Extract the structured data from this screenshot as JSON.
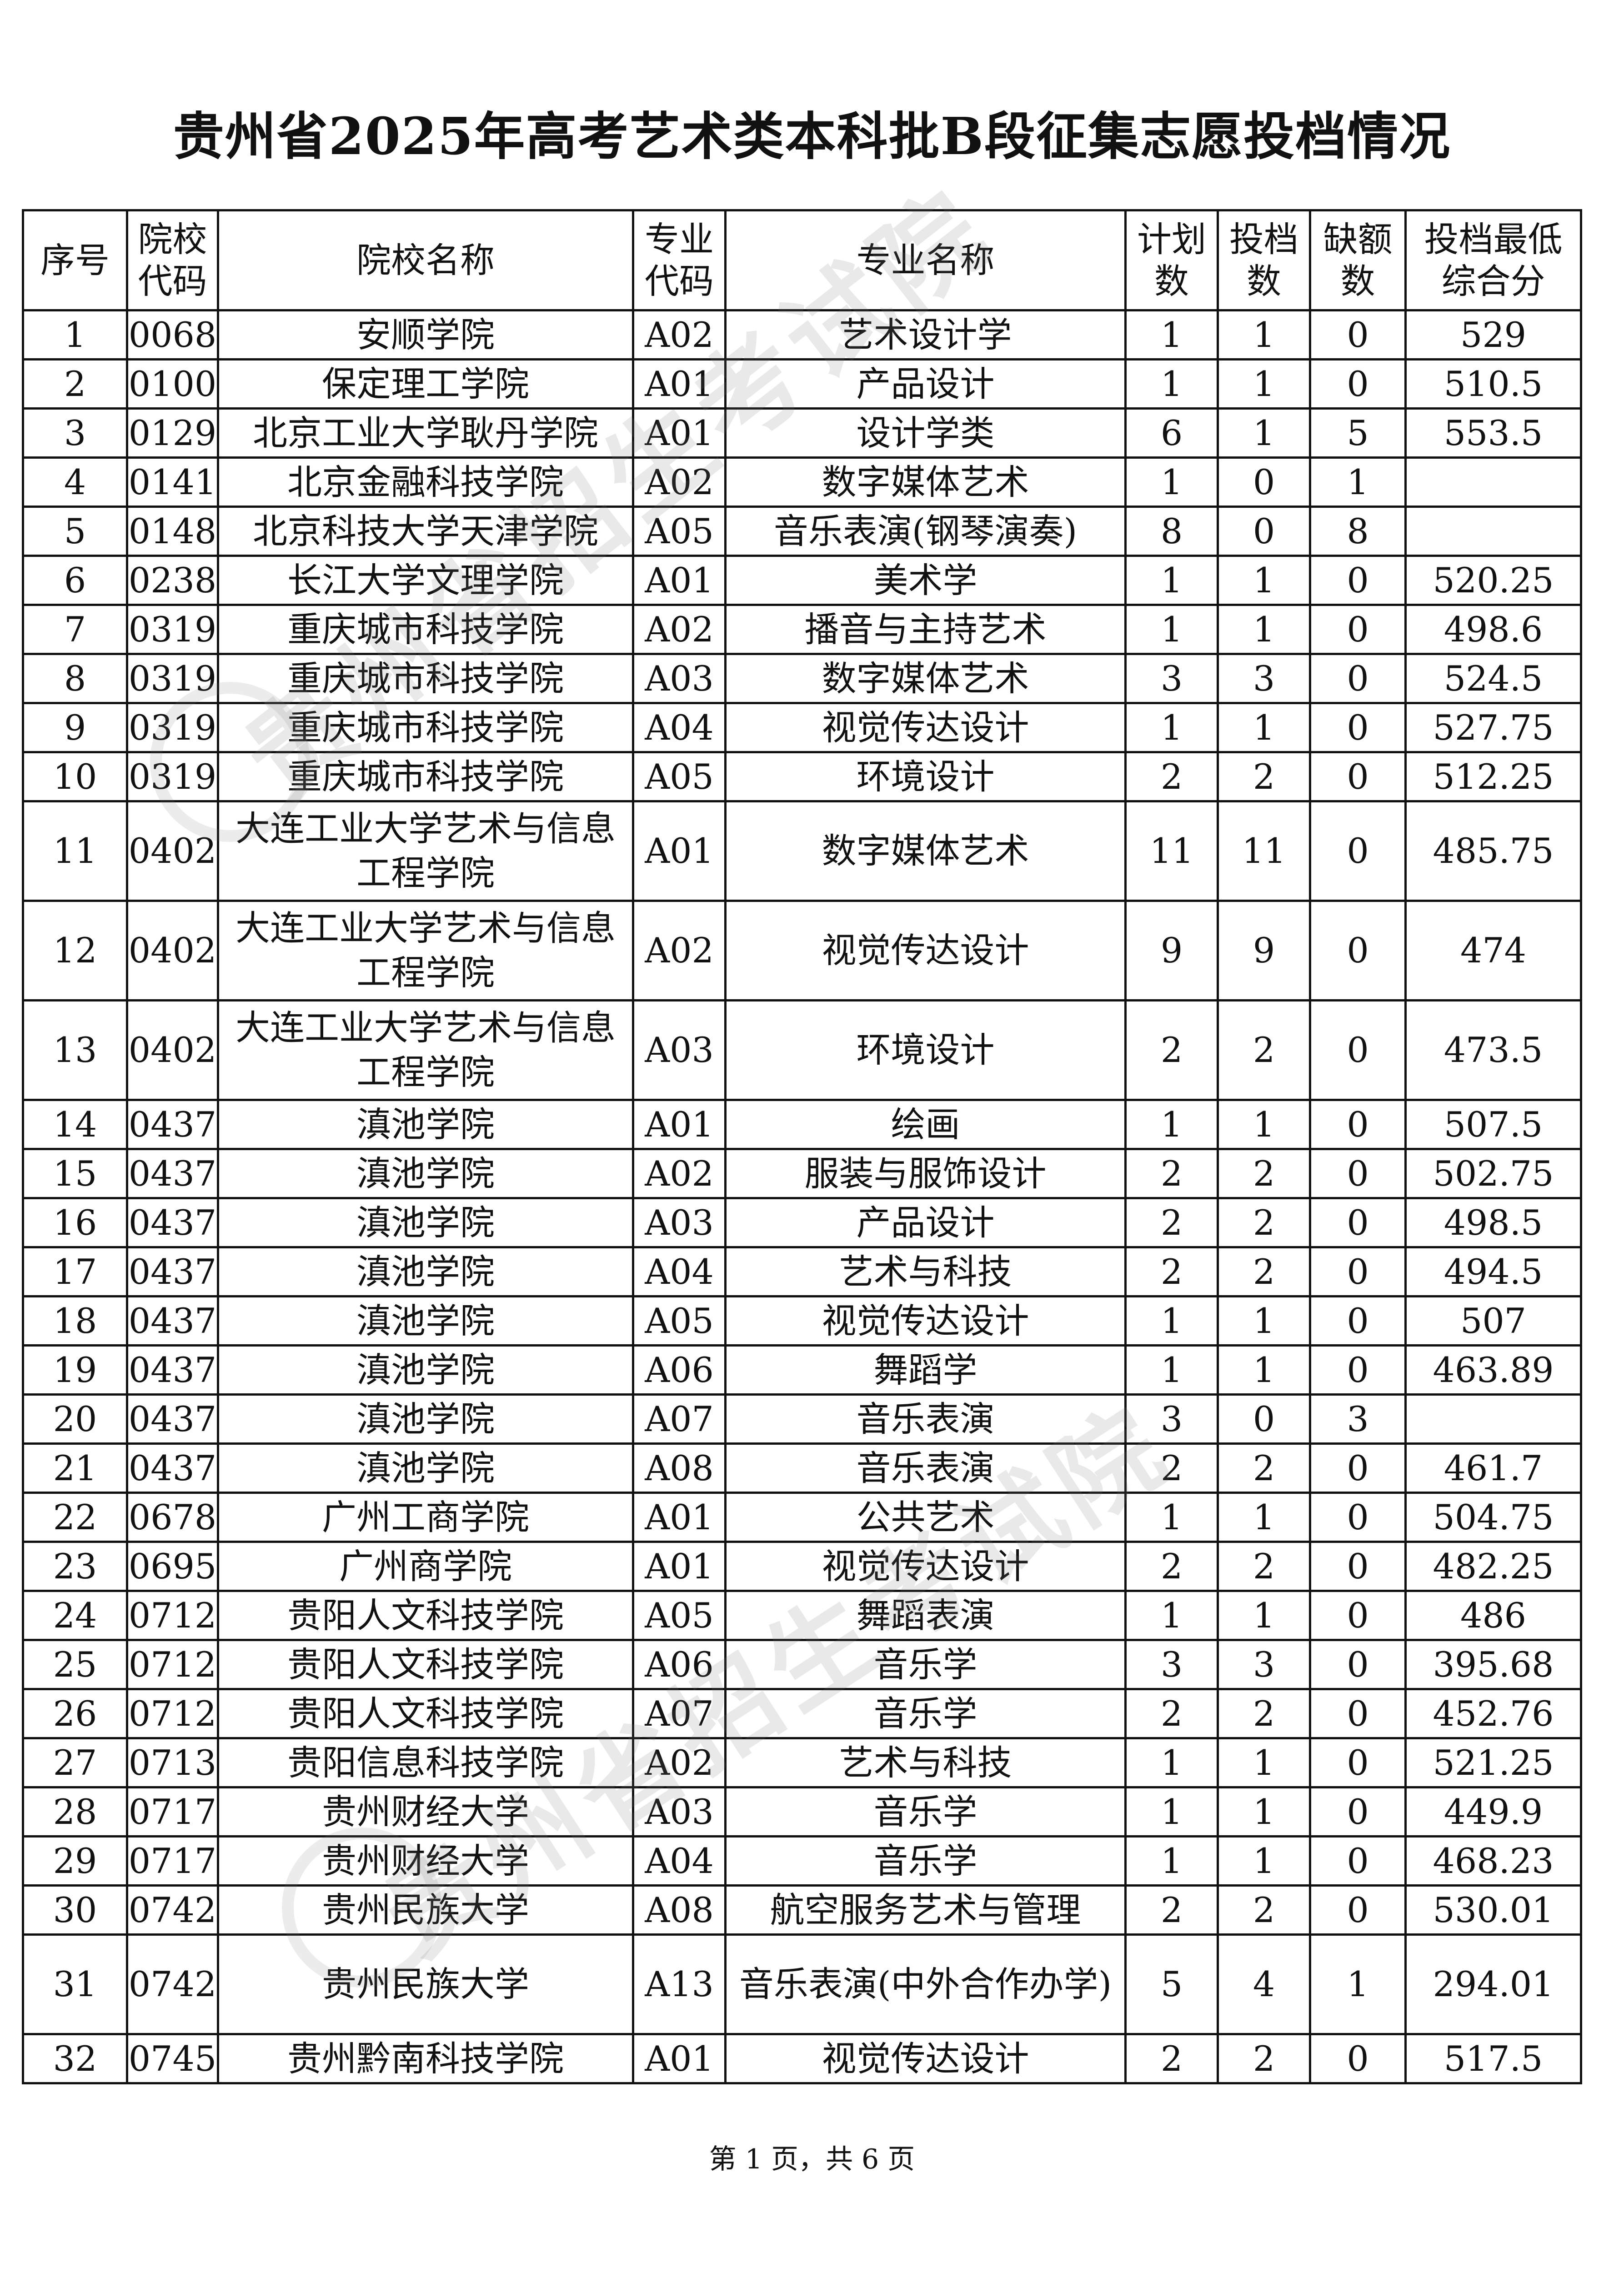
{
  "title": "贵州省2025年高考艺术类本科批B段征集志愿投档情况",
  "headers": [
    "序号",
    "院校代码",
    "院校名称",
    "专业代码",
    "专业名称",
    "计划数",
    "投档数",
    "缺额数",
    "投档最低综合分"
  ],
  "header_lines": [
    [
      "序号"
    ],
    [
      "院校",
      "代码"
    ],
    [
      "院校名称"
    ],
    [
      "专业",
      "代码"
    ],
    [
      "专业名称"
    ],
    [
      "计",
      "划数"
    ],
    [
      "投",
      "档数"
    ],
    [
      "缺",
      "额数"
    ],
    [
      "投档最低",
      "综合分"
    ]
  ],
  "rows": [
    [
      "1",
      "0068",
      "安顺学院",
      "A02",
      "艺术设计学",
      "1",
      "1",
      "0",
      "529"
    ],
    [
      "2",
      "0100",
      "保定理工学院",
      "A01",
      "产品设计",
      "1",
      "1",
      "0",
      "510.5"
    ],
    [
      "3",
      "0129",
      "北京工业大学耿丹学院",
      "A01",
      "设计学类",
      "6",
      "1",
      "5",
      "553.5"
    ],
    [
      "4",
      "0141",
      "北京金融科技学院",
      "A02",
      "数字媒体艺术",
      "1",
      "0",
      "1",
      ""
    ],
    [
      "5",
      "0148",
      "北京科技大学天津学院",
      "A05",
      "音乐表演(钢琴演奏)",
      "8",
      "0",
      "8",
      ""
    ],
    [
      "6",
      "0238",
      "长江大学文理学院",
      "A01",
      "美术学",
      "1",
      "1",
      "0",
      "520.25"
    ],
    [
      "7",
      "0319",
      "重庆城市科技学院",
      "A02",
      "播音与主持艺术",
      "1",
      "1",
      "0",
      "498.6"
    ],
    [
      "8",
      "0319",
      "重庆城市科技学院",
      "A03",
      "数字媒体艺术",
      "3",
      "3",
      "0",
      "524.5"
    ],
    [
      "9",
      "0319",
      "重庆城市科技学院",
      "A04",
      "视觉传达设计",
      "1",
      "1",
      "0",
      "527.75"
    ],
    [
      "10",
      "0319",
      "重庆城市科技学院",
      "A05",
      "环境设计",
      "2",
      "2",
      "0",
      "512.25"
    ],
    [
      "11",
      "0402",
      "大连工业大学艺术与信息工程学院",
      "A01",
      "数字媒体艺术",
      "11",
      "11",
      "0",
      "485.75"
    ],
    [
      "12",
      "0402",
      "大连工业大学艺术与信息工程学院",
      "A02",
      "视觉传达设计",
      "9",
      "9",
      "0",
      "474"
    ],
    [
      "13",
      "0402",
      "大连工业大学艺术与信息工程学院",
      "A03",
      "环境设计",
      "2",
      "2",
      "0",
      "473.5"
    ],
    [
      "14",
      "0437",
      "滇池学院",
      "A01",
      "绘画",
      "1",
      "1",
      "0",
      "507.5"
    ],
    [
      "15",
      "0437",
      "滇池学院",
      "A02",
      "服装与服饰设计",
      "2",
      "2",
      "0",
      "502.75"
    ],
    [
      "16",
      "0437",
      "滇池学院",
      "A03",
      "产品设计",
      "2",
      "2",
      "0",
      "498.5"
    ],
    [
      "17",
      "0437",
      "滇池学院",
      "A04",
      "艺术与科技",
      "2",
      "2",
      "0",
      "494.5"
    ],
    [
      "18",
      "0437",
      "滇池学院",
      "A05",
      "视觉传达设计",
      "1",
      "1",
      "0",
      "507"
    ],
    [
      "19",
      "0437",
      "滇池学院",
      "A06",
      "舞蹈学",
      "1",
      "1",
      "0",
      "463.89"
    ],
    [
      "20",
      "0437",
      "滇池学院",
      "A07",
      "音乐表演",
      "3",
      "0",
      "3",
      ""
    ],
    [
      "21",
      "0437",
      "滇池学院",
      "A08",
      "音乐表演",
      "2",
      "2",
      "0",
      "461.7"
    ],
    [
      "22",
      "0678",
      "广州工商学院",
      "A01",
      "公共艺术",
      "1",
      "1",
      "0",
      "504.75"
    ],
    [
      "23",
      "0695",
      "广州商学院",
      "A01",
      "视觉传达设计",
      "2",
      "2",
      "0",
      "482.25"
    ],
    [
      "24",
      "0712",
      "贵阳人文科技学院",
      "A05",
      "舞蹈表演",
      "1",
      "1",
      "0",
      "486"
    ],
    [
      "25",
      "0712",
      "贵阳人文科技学院",
      "A06",
      "音乐学",
      "3",
      "3",
      "0",
      "395.68"
    ],
    [
      "26",
      "0712",
      "贵阳人文科技学院",
      "A07",
      "音乐学",
      "2",
      "2",
      "0",
      "452.76"
    ],
    [
      "27",
      "0713",
      "贵阳信息科技学院",
      "A02",
      "艺术与科技",
      "1",
      "1",
      "0",
      "521.25"
    ],
    [
      "28",
      "0717",
      "贵州财经大学",
      "A03",
      "音乐学",
      "1",
      "1",
      "0",
      "449.9"
    ],
    [
      "29",
      "0717",
      "贵州财经大学",
      "A04",
      "音乐学",
      "1",
      "1",
      "0",
      "468.23"
    ],
    [
      "30",
      "0742",
      "贵州民族大学",
      "A08",
      "航空服务艺术与管理",
      "2",
      "2",
      "0",
      "530.01"
    ],
    [
      "31",
      "0742",
      "贵州民族大学",
      "A13",
      "音乐表演(中外合作办学)",
      "5",
      "4",
      "1",
      "294.01"
    ],
    [
      "32",
      "0745",
      "贵州黔南科技学院",
      "A01",
      "视觉传达设计",
      "2",
      "2",
      "0",
      "517.5"
    ]
  ],
  "footer": "第 1 页，共 6 页",
  "watermark": "贵州省招生考试院"
}
